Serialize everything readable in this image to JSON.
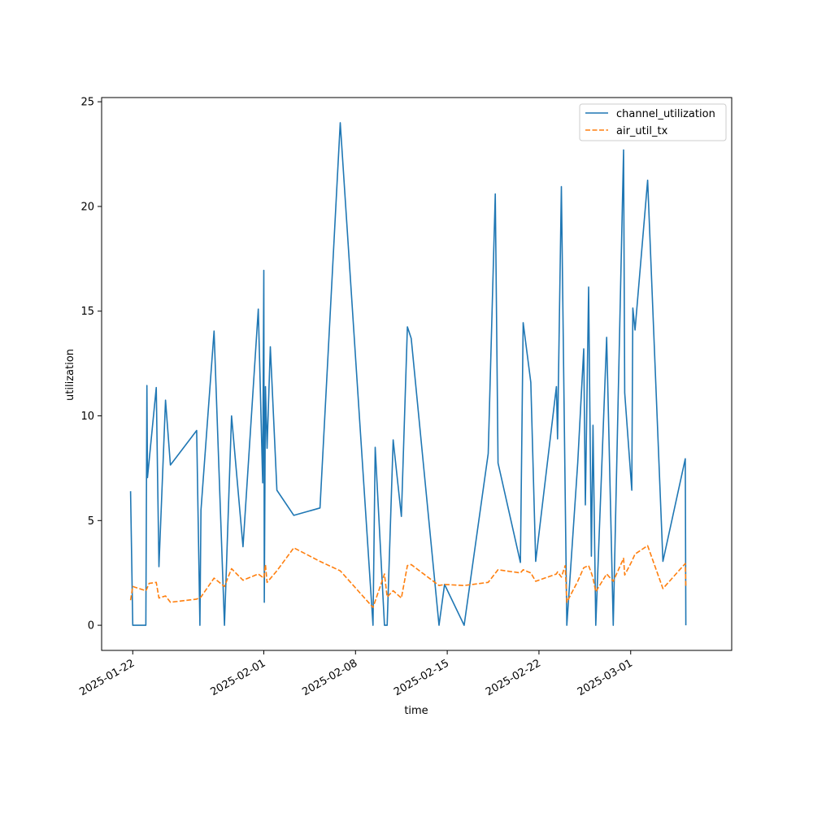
{
  "chart_data": {
    "type": "line",
    "xlabel": "time",
    "ylabel": "utilization",
    "x_range": [
      "2025-01-19T15:00",
      "2025-03-08T17:00"
    ],
    "ylim": [
      -1.2,
      25.2
    ],
    "x_ticks": [
      "2025-01-22",
      "2025-02-01",
      "2025-02-08",
      "2025-02-15",
      "2025-02-22",
      "2025-03-01"
    ],
    "y_ticks": [
      0,
      5,
      10,
      15,
      20,
      25
    ],
    "grid": false,
    "legend_position": "top-right",
    "series": [
      {
        "name": "channel_utilization",
        "color": "#1f77b4",
        "style": "solid",
        "points": [
          [
            "2025-01-21T20:00",
            6.4
          ],
          [
            "2025-01-22T00:00",
            0
          ],
          [
            "2025-01-23T00:00",
            0
          ],
          [
            "2025-01-23T02:00",
            11.45
          ],
          [
            "2025-01-23T03:00",
            7.05
          ],
          [
            "2025-01-23T19:00",
            11.35
          ],
          [
            "2025-01-24T00:00",
            2.8
          ],
          [
            "2025-01-24T12:00",
            10.75
          ],
          [
            "2025-01-24T21:00",
            7.65
          ],
          [
            "2025-01-26T21:00",
            9.3
          ],
          [
            "2025-01-27T03:00",
            0
          ],
          [
            "2025-01-27T05:00",
            5.5
          ],
          [
            "2025-01-28T05:00",
            14.05
          ],
          [
            "2025-01-29T00:00",
            0
          ],
          [
            "2025-01-29T13:00",
            10.0
          ],
          [
            "2025-01-30T10:00",
            3.75
          ],
          [
            "2025-01-31T14:00",
            15.1
          ],
          [
            "2025-01-31T22:00",
            6.8
          ],
          [
            "2025-02-01T00:00",
            16.95
          ],
          [
            "2025-02-01T01:00",
            1.1
          ],
          [
            "2025-02-01T03:00",
            11.4
          ],
          [
            "2025-02-01T06:00",
            8.45
          ],
          [
            "2025-02-01T12:00",
            13.3
          ],
          [
            "2025-02-02T00:00",
            6.45
          ],
          [
            "2025-02-03T07:00",
            5.25
          ],
          [
            "2025-02-05T07:00",
            5.6
          ],
          [
            "2025-02-06T20:00",
            24.0
          ],
          [
            "2025-02-09T08:00",
            0
          ],
          [
            "2025-02-09T12:00",
            8.5
          ],
          [
            "2025-02-10T05:00",
            0
          ],
          [
            "2025-02-10T10:00",
            0
          ],
          [
            "2025-02-10T21:00",
            8.85
          ],
          [
            "2025-02-11T12:00",
            5.2
          ],
          [
            "2025-02-11T23:00",
            14.25
          ],
          [
            "2025-02-12T06:00",
            13.7
          ],
          [
            "2025-02-14T09:00",
            0
          ],
          [
            "2025-02-14T19:00",
            1.95
          ],
          [
            "2025-02-16T07:00",
            0
          ],
          [
            "2025-02-18T03:00",
            8.2
          ],
          [
            "2025-02-18T16:00",
            20.6
          ],
          [
            "2025-02-18T21:00",
            7.75
          ],
          [
            "2025-02-20T14:00",
            3.0
          ],
          [
            "2025-02-20T19:00",
            14.45
          ],
          [
            "2025-02-21T09:00",
            11.6
          ],
          [
            "2025-02-21T18:00",
            3.05
          ],
          [
            "2025-02-23T08:00",
            11.4
          ],
          [
            "2025-02-23T10:00",
            8.9
          ],
          [
            "2025-02-23T17:00",
            20.95
          ],
          [
            "2025-02-24T03:00",
            0
          ],
          [
            "2025-02-24T23:00",
            7.75
          ],
          [
            "2025-02-25T10:00",
            13.2
          ],
          [
            "2025-02-25T13:00",
            5.75
          ],
          [
            "2025-02-25T19:00",
            16.15
          ],
          [
            "2025-02-26T00:00",
            3.3
          ],
          [
            "2025-02-26T03:00",
            9.55
          ],
          [
            "2025-02-26T08:00",
            0
          ],
          [
            "2025-02-27T04:00",
            13.75
          ],
          [
            "2025-02-27T16:00",
            0
          ],
          [
            "2025-02-28T11:00",
            22.7
          ],
          [
            "2025-02-28T13:00",
            11.1
          ],
          [
            "2025-03-01T02:00",
            6.45
          ],
          [
            "2025-03-01T04:00",
            15.15
          ],
          [
            "2025-03-01T08:00",
            14.1
          ],
          [
            "2025-03-02T07:00",
            21.25
          ],
          [
            "2025-03-03T11:00",
            3.05
          ],
          [
            "2025-03-05T04:00",
            7.95
          ],
          [
            "2025-03-05T05:00",
            0
          ]
        ]
      },
      {
        "name": "air_util_tx",
        "color": "#ff7f0e",
        "style": "dashed",
        "points": [
          [
            "2025-01-21T20:00",
            1.2
          ],
          [
            "2025-01-22T00:00",
            1.85
          ],
          [
            "2025-01-23T00:00",
            1.65
          ],
          [
            "2025-01-23T02:00",
            1.75
          ],
          [
            "2025-01-23T06:00",
            2.0
          ],
          [
            "2025-01-23T19:00",
            2.05
          ],
          [
            "2025-01-24T00:00",
            1.3
          ],
          [
            "2025-01-24T12:00",
            1.4
          ],
          [
            "2025-01-24T21:00",
            1.1
          ],
          [
            "2025-01-26T21:00",
            1.25
          ],
          [
            "2025-01-27T05:00",
            1.35
          ],
          [
            "2025-01-28T05:00",
            2.25
          ],
          [
            "2025-01-29T00:00",
            1.85
          ],
          [
            "2025-01-29T13:00",
            2.7
          ],
          [
            "2025-01-30T10:00",
            2.15
          ],
          [
            "2025-01-31T14:00",
            2.45
          ],
          [
            "2025-02-01T00:00",
            2.25
          ],
          [
            "2025-02-01T03:00",
            2.9
          ],
          [
            "2025-02-01T06:00",
            2.05
          ],
          [
            "2025-02-02T00:00",
            2.6
          ],
          [
            "2025-02-03T07:00",
            3.7
          ],
          [
            "2025-02-05T07:00",
            3.05
          ],
          [
            "2025-02-06T20:00",
            2.6
          ],
          [
            "2025-02-09T08:00",
            0.85
          ],
          [
            "2025-02-10T05:00",
            2.45
          ],
          [
            "2025-02-10T10:00",
            1.35
          ],
          [
            "2025-02-10T21:00",
            1.65
          ],
          [
            "2025-02-11T12:00",
            1.3
          ],
          [
            "2025-02-11T23:00",
            2.85
          ],
          [
            "2025-02-12T06:00",
            2.9
          ],
          [
            "2025-02-14T09:00",
            1.9
          ],
          [
            "2025-02-14T19:00",
            1.95
          ],
          [
            "2025-02-16T07:00",
            1.9
          ],
          [
            "2025-02-18T03:00",
            2.05
          ],
          [
            "2025-02-18T21:00",
            2.65
          ],
          [
            "2025-02-20T14:00",
            2.5
          ],
          [
            "2025-02-20T19:00",
            2.65
          ],
          [
            "2025-02-21T09:00",
            2.5
          ],
          [
            "2025-02-21T18:00",
            2.1
          ],
          [
            "2025-02-23T08:00",
            2.45
          ],
          [
            "2025-02-23T10:00",
            2.55
          ],
          [
            "2025-02-23T17:00",
            2.3
          ],
          [
            "2025-02-24T00:00",
            2.85
          ],
          [
            "2025-02-24T03:00",
            1.1
          ],
          [
            "2025-02-24T23:00",
            2.1
          ],
          [
            "2025-02-25T10:00",
            2.75
          ],
          [
            "2025-02-25T19:00",
            2.85
          ],
          [
            "2025-02-26T00:00",
            2.5
          ],
          [
            "2025-02-26T03:00",
            2.25
          ],
          [
            "2025-02-26T08:00",
            1.6
          ],
          [
            "2025-02-27T04:00",
            2.45
          ],
          [
            "2025-02-27T16:00",
            2.1
          ],
          [
            "2025-02-28T11:00",
            3.2
          ],
          [
            "2025-02-28T13:00",
            2.4
          ],
          [
            "2025-03-01T02:00",
            3.05
          ],
          [
            "2025-03-01T08:00",
            3.4
          ],
          [
            "2025-03-02T07:00",
            3.8
          ],
          [
            "2025-03-03T11:00",
            1.75
          ],
          [
            "2025-03-05T04:00",
            2.95
          ],
          [
            "2025-03-05T05:00",
            1.8
          ]
        ]
      }
    ]
  }
}
